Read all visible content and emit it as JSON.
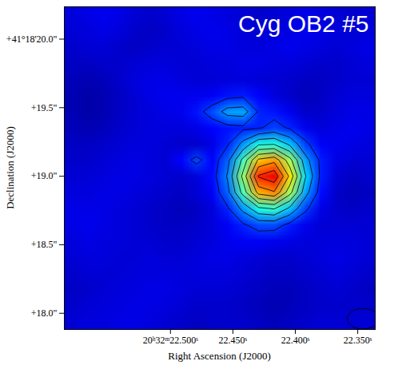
{
  "chart_data": {
    "type": "contour",
    "title": "Cyg OB2 #5",
    "x_label": "Right Ascension (J2000)",
    "y_label": "Declination (J2000)",
    "xlim": [
      22.585,
      22.336
    ],
    "ylim": [
      17.882,
      20.236
    ],
    "xticks": [
      {
        "value": 22.5,
        "label": "20ʰ32ᵐ22.500ˢ"
      },
      {
        "value": 22.45,
        "label": "22.450ˢ"
      },
      {
        "value": 22.4,
        "label": "22.400ˢ"
      },
      {
        "value": 22.35,
        "label": "22.350ˢ"
      }
    ],
    "yticks": [
      {
        "value": 20,
        "label": "+41°18'20.0\""
      },
      {
        "value": 19.5,
        "label": "+19.5\""
      },
      {
        "value": 19,
        "label": "+19.0\""
      },
      {
        "value": 18.5,
        "label": "+18.5\""
      },
      {
        "value": 18,
        "label": "+18.0\""
      }
    ],
    "color_range": [
      -10,
      110
    ],
    "contour_levels": [
      10,
      20,
      30,
      40,
      50,
      60,
      70,
      80,
      90
    ],
    "beam": {
      "ra": 22.3458,
      "dec": 17.96,
      "ra_radius": 0.0125,
      "dec_radius": 0.075
    },
    "cells": [
      [
        1,
        2,
        3,
        2,
        0,
        -1,
        0,
        2,
        3,
        2,
        1,
        0,
        -1,
        0,
        1,
        2,
        1,
        0,
        -1,
        0
      ],
      [
        0,
        1,
        2,
        1,
        -1,
        -2,
        -1,
        1,
        2,
        3,
        2,
        1,
        0,
        1,
        2,
        3,
        2,
        1,
        0,
        1
      ],
      [
        -1,
        0,
        0,
        -1,
        -2,
        -1,
        0,
        0,
        1,
        2,
        2,
        1,
        1,
        2,
        3,
        2,
        1,
        0,
        1,
        2
      ],
      [
        -2,
        -2,
        -1,
        -1,
        0,
        1,
        1,
        0,
        0,
        1,
        1,
        2,
        2,
        1,
        1,
        0,
        -1,
        -1,
        0,
        1
      ],
      [
        -3,
        -4,
        -3,
        -1,
        1,
        2,
        2,
        1,
        0,
        0,
        1,
        1,
        0,
        0,
        -1,
        -2,
        -2,
        -1,
        0,
        0
      ],
      [
        -4,
        -5,
        -4,
        -2,
        0,
        2,
        3,
        3,
        3,
        4,
        7,
        8,
        5,
        1,
        -1,
        -3,
        -2,
        0,
        1,
        1
      ],
      [
        -4,
        -5,
        -4,
        -2,
        0,
        1,
        2,
        3,
        7,
        14,
        24,
        25,
        9,
        7,
        3,
        -1,
        -1,
        1,
        2,
        2
      ],
      [
        -3,
        -4,
        -3,
        -1,
        0,
        1,
        1,
        1,
        2,
        5,
        7,
        8,
        9,
        13,
        9,
        3,
        1,
        2,
        3,
        2
      ],
      [
        -2,
        -2,
        -1,
        0,
        1,
        1,
        0,
        -1,
        -1,
        2,
        9,
        23,
        38,
        39,
        28,
        12,
        4,
        3,
        2,
        1
      ],
      [
        -1,
        -1,
        0,
        1,
        2,
        1,
        0,
        5,
        13,
        5,
        17,
        43,
        72,
        77,
        54,
        24,
        8,
        2,
        0,
        0
      ],
      [
        0,
        0,
        1,
        2,
        2,
        1,
        0,
        -1,
        1,
        6,
        21,
        53,
        91,
        97,
        68,
        31,
        8,
        0,
        -2,
        -1
      ],
      [
        1,
        1,
        2,
        2,
        1,
        0,
        -1,
        -2,
        0,
        4,
        17,
        44,
        74,
        79,
        54,
        24,
        6,
        -1,
        -3,
        -2
      ],
      [
        2,
        2,
        2,
        1,
        0,
        -1,
        -2,
        -3,
        -2,
        1,
        9,
        23,
        38,
        41,
        28,
        12,
        2,
        -1,
        -2,
        -1
      ],
      [
        2,
        3,
        2,
        1,
        0,
        -1,
        -2,
        -2,
        -1,
        1,
        4,
        9,
        14,
        14,
        8,
        3,
        0,
        0,
        0,
        0
      ],
      [
        1,
        2,
        1,
        1,
        0,
        0,
        -1,
        -1,
        0,
        1,
        3,
        4,
        4,
        3,
        2,
        1,
        1,
        1,
        1,
        0
      ],
      [
        0,
        1,
        1,
        0,
        0,
        1,
        0,
        0,
        1,
        2,
        2,
        1,
        0,
        -1,
        -1,
        0,
        1,
        2,
        1,
        0
      ],
      [
        -1,
        0,
        0,
        0,
        1,
        1,
        1,
        1,
        1,
        1,
        1,
        0,
        -1,
        -2,
        -2,
        -1,
        0,
        1,
        0,
        -1
      ],
      [
        -2,
        -1,
        0,
        1,
        1,
        2,
        2,
        1,
        0,
        0,
        0,
        -1,
        -2,
        -3,
        -3,
        -2,
        -1,
        0,
        -1,
        -2
      ],
      [
        -1,
        0,
        1,
        1,
        2,
        2,
        1,
        0,
        -1,
        -1,
        -1,
        -2,
        -3,
        -4,
        -3,
        -2,
        -1,
        -1,
        -1,
        -1
      ],
      [
        0,
        1,
        1,
        2,
        2,
        1,
        0,
        -1,
        -2,
        -1,
        -1,
        -1,
        -2,
        -3,
        -2,
        -1,
        0,
        0,
        0,
        0
      ]
    ]
  }
}
